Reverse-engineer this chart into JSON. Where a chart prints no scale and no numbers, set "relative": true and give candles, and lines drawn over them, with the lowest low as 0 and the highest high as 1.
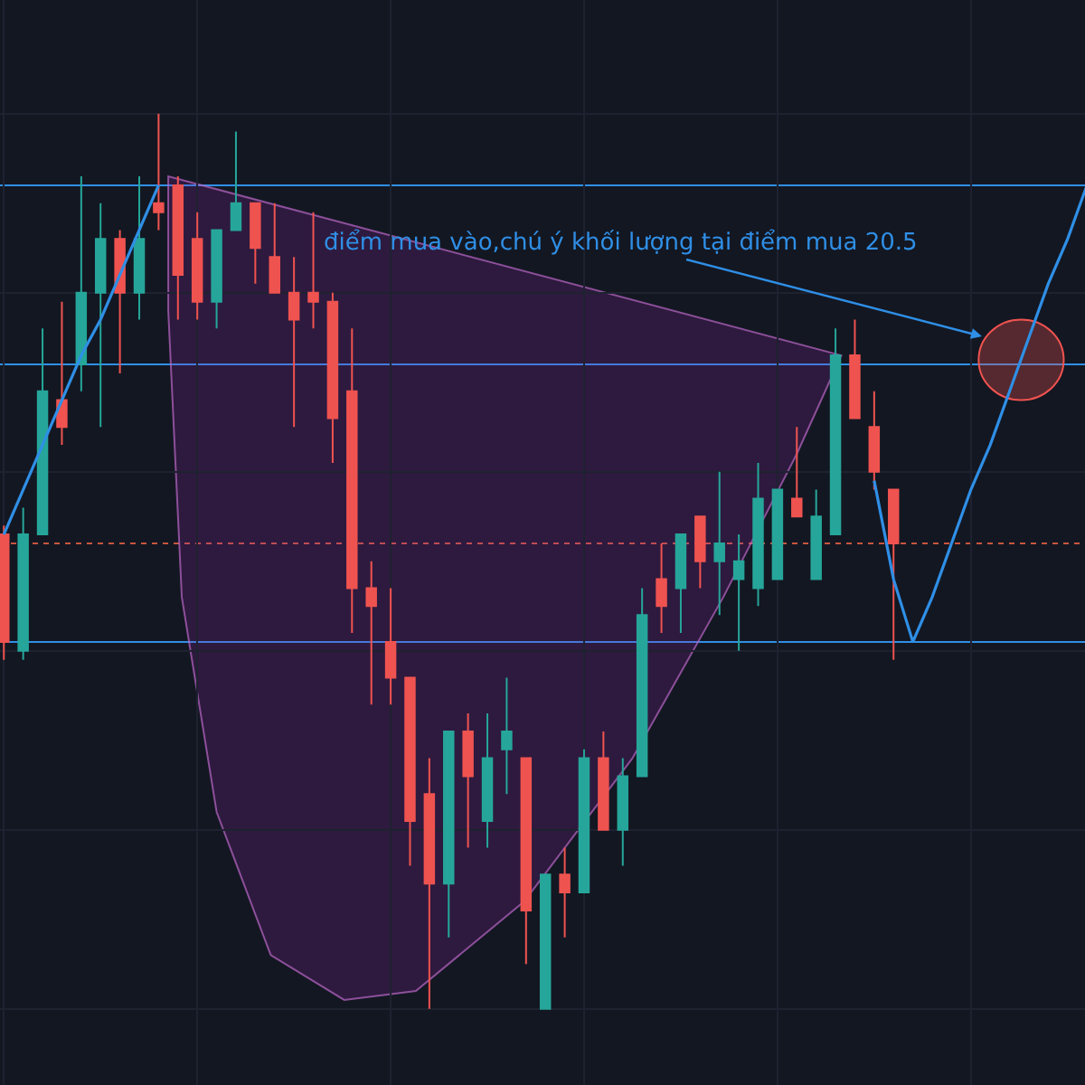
{
  "chart_data": {
    "type": "candlestick",
    "relative": true,
    "grid": true,
    "tick_labels": false,
    "categories": [
      null,
      null,
      null,
      null,
      null,
      null,
      null,
      null,
      null,
      null,
      null,
      null,
      null,
      null,
      null,
      null,
      null,
      null,
      null,
      null,
      null,
      null,
      null,
      null,
      null,
      null,
      null,
      null,
      null,
      null,
      null,
      null,
      null,
      null,
      null,
      null,
      null,
      null,
      null,
      null,
      null,
      null,
      null,
      null,
      null,
      null,
      null,
      null,
      null,
      null,
      null,
      null,
      null,
      null,
      null,
      null,
      null
    ],
    "ohlc": [
      [
        0.53,
        0.54,
        0.39,
        0.41
      ],
      [
        0.4,
        0.56,
        0.39,
        0.53
      ],
      [
        0.53,
        0.76,
        0.53,
        0.69
      ],
      [
        0.68,
        0.79,
        0.63,
        0.65
      ],
      [
        0.72,
        0.93,
        0.69,
        0.8
      ],
      [
        0.8,
        0.9,
        0.65,
        0.86
      ],
      [
        0.86,
        0.87,
        0.71,
        0.8
      ],
      [
        0.8,
        0.93,
        0.77,
        0.86
      ],
      [
        0.9,
        1,
        0.87,
        0.89
      ],
      [
        0.92,
        0.93,
        0.77,
        0.82
      ],
      [
        0.86,
        0.89,
        0.77,
        0.79
      ],
      [
        0.79,
        0.87,
        0.76,
        0.87
      ],
      [
        0.87,
        0.98,
        0.87,
        0.9
      ],
      [
        0.9,
        0.9,
        0.81,
        0.85
      ],
      [
        0.84,
        0.9,
        0.8,
        0.8
      ],
      [
        0.8,
        0.84,
        0.65,
        0.77
      ],
      [
        0.8,
        0.89,
        0.76,
        0.79
      ],
      [
        0.79,
        0.8,
        0.61,
        0.66
      ],
      [
        0.69,
        0.76,
        0.42,
        0.47
      ],
      [
        0.47,
        0.5,
        0.34,
        0.45
      ],
      [
        0.41,
        0.47,
        0.34,
        0.37
      ],
      [
        0.37,
        0.37,
        0.16,
        0.21
      ],
      [
        0.24,
        0.28,
        0,
        0.14
      ],
      [
        0.14,
        0.31,
        0.08,
        0.31
      ],
      [
        0.31,
        0.33,
        0.18,
        0.26
      ],
      [
        0.21,
        0.33,
        0.18,
        0.28
      ],
      [
        0.29,
        0.37,
        0.24,
        0.31
      ],
      [
        0.28,
        0.28,
        0.05,
        0.11
      ],
      [
        0,
        0.15,
        0,
        0.15
      ],
      [
        0.15,
        0.18,
        0.08,
        0.13
      ],
      [
        0.13,
        0.29,
        0.13,
        0.28
      ],
      [
        0.28,
        0.31,
        0.2,
        0.2
      ],
      [
        0.2,
        0.28,
        0.16,
        0.26
      ],
      [
        0.26,
        0.47,
        0.26,
        0.44
      ],
      [
        0.48,
        0.52,
        0.42,
        0.45
      ],
      [
        0.47,
        0.53,
        0.42,
        0.53
      ],
      [
        0.55,
        0.55,
        0.47,
        0.5
      ],
      [
        0.5,
        0.6,
        0.44,
        0.52
      ],
      [
        0.48,
        0.53,
        0.4,
        0.5
      ],
      [
        0.47,
        0.61,
        0.45,
        0.57
      ],
      [
        0.48,
        0.58,
        0.48,
        0.58
      ],
      [
        0.57,
        0.65,
        0.55,
        0.55
      ],
      [
        0.48,
        0.58,
        0.48,
        0.55
      ],
      [
        0.53,
        0.76,
        0.53,
        0.73
      ],
      [
        0.73,
        0.77,
        0.66,
        0.66
      ],
      [
        0.65,
        0.69,
        0.58,
        0.6
      ],
      [
        0.58,
        0.58,
        0.39,
        0.52
      ],
      null,
      null,
      null,
      null,
      null,
      null,
      null,
      null,
      null,
      null
    ],
    "colors": [
      "#ef5350",
      "#26a69a",
      "#26a69a",
      "#ef5350",
      "#26a69a",
      "#26a69a",
      "#ef5350",
      "#26a69a",
      "#ef5350",
      "#ef5350",
      "#ef5350",
      "#26a69a",
      "#26a69a",
      "#ef5350",
      "#ef5350",
      "#ef5350",
      "#ef5350",
      "#ef5350",
      "#ef5350",
      "#ef5350",
      "#ef5350",
      "#ef5350",
      "#ef5350",
      "#26a69a",
      "#ef5350",
      "#26a69a",
      "#26a69a",
      "#ef5350",
      "#26a69a",
      "#ef5350",
      "#26a69a",
      "#ef5350",
      "#26a69a",
      "#26a69a",
      "#ef5350",
      "#26a69a",
      "#ef5350",
      "#26a69a",
      "#26a69a",
      "#26a69a",
      "#26a69a",
      "#ef5350",
      "#26a69a",
      "#26a69a",
      "#ef5350",
      "#ef5350",
      "#ef5350",
      null,
      null,
      null,
      null,
      null,
      null,
      null,
      null,
      null,
      null
    ],
    "series": [
      {
        "type": "line",
        "color": "#2f8fe6",
        "values": [
          0.53,
          0.58,
          0.63,
          0.68,
          0.73,
          0.77,
          0.82,
          0.87,
          0.92,
          null,
          null,
          null,
          null,
          null,
          null,
          null,
          null,
          null,
          null,
          null,
          null,
          null,
          null,
          null,
          null,
          null,
          null,
          null,
          null,
          null,
          null,
          null,
          null,
          null,
          null,
          null,
          null,
          null,
          null,
          null,
          null,
          null,
          null,
          null,
          null,
          null,
          null,
          null,
          null,
          null,
          null,
          null,
          null,
          null,
          null,
          null,
          null
        ]
      },
      {
        "type": "line",
        "color": "#2f8fe6",
        "values": [
          null,
          null,
          null,
          null,
          null,
          null,
          null,
          null,
          null,
          null,
          null,
          null,
          null,
          null,
          null,
          null,
          null,
          null,
          null,
          null,
          null,
          null,
          null,
          null,
          null,
          null,
          null,
          null,
          null,
          null,
          null,
          null,
          null,
          null,
          null,
          null,
          null,
          null,
          null,
          null,
          null,
          null,
          null,
          null,
          null,
          0.59,
          0.48,
          0.41,
          0.46,
          0.52,
          0.58,
          0.63,
          0.69,
          0.75,
          0.81,
          0.86,
          0.92
        ]
      }
    ],
    "ref_lines": [
      {
        "axis": "y",
        "value": 0.92,
        "color": "#2f8fe6",
        "line_style": "solid"
      },
      {
        "axis": "y",
        "value": 0.72,
        "color": "#2f8fe6",
        "line_style": "solid"
      },
      {
        "axis": "y",
        "value": 0.41,
        "color": "#2f8fe6",
        "line_style": "solid"
      },
      {
        "axis": "y",
        "value": 0.52,
        "color": "#c8553d",
        "line_style": "dotted"
      }
    ],
    "annotations": [
      "điểm mua vào,chú ý khối lượng tại điểm mua 20.5"
    ]
  }
}
